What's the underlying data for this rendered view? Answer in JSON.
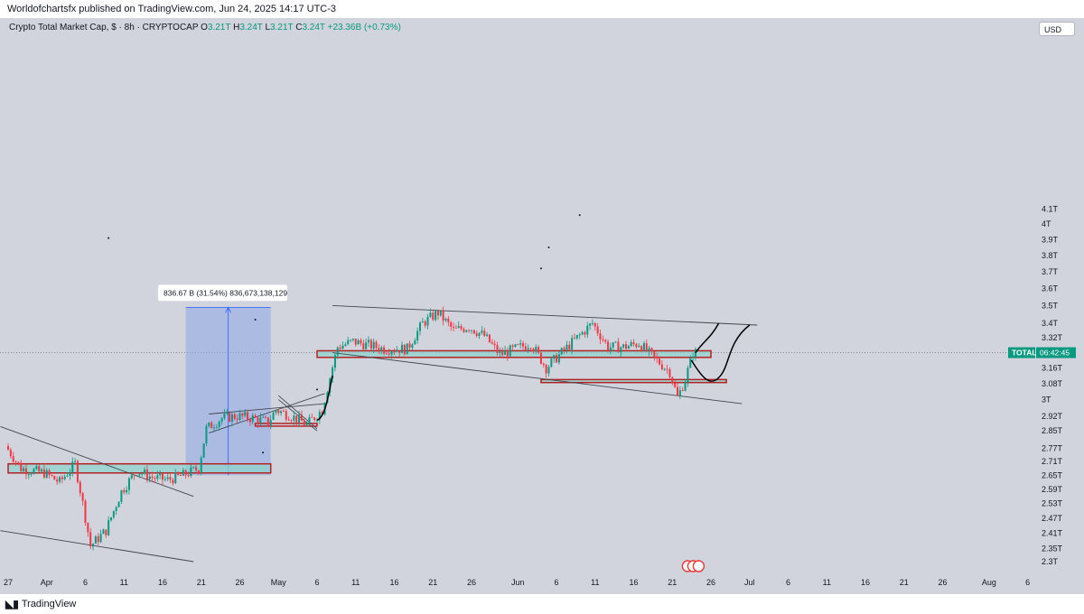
{
  "header": {
    "publish_text": "Worldofchartsfx published on TradingView.com, Jun 24, 2025 14:17 UTC-3"
  },
  "legend": {
    "title": "Crypto Total Market Cap, $ · 8h · CRYPTOCAP",
    "o_label": "O",
    "o_value": "3.21T",
    "h_label": "H",
    "h_value": "3.24T",
    "l_label": "L",
    "l_value": "3.21T",
    "c_label": "C",
    "c_value": "3.24T",
    "change": "+23.36B (+0.73%)"
  },
  "currency_button": "USD",
  "price_tag": {
    "symbol": "TOTAL",
    "countdown": "06:42:45"
  },
  "measure_label": "836.67 B (31.54%) 836,673,138,129",
  "footer": {
    "brand": "TradingView"
  },
  "colors": {
    "background": "#d1d4dc",
    "bull": "#089981",
    "bear": "#f23645",
    "zone_fill": "#8fd3cf",
    "zone_border": "#b22222",
    "measure_fill": "#8ea5e8"
  },
  "chart_data": {
    "type": "candlestick",
    "title": "Crypto Total Market Cap, $ · 8h · CRYPTOCAP",
    "price_axis": [
      "4.1T",
      "4T",
      "3.9T",
      "3.8T",
      "3.7T",
      "3.6T",
      "3.5T",
      "3.4T",
      "3.32T",
      "3.16T",
      "3.08T",
      "3T",
      "2.92T",
      "2.85T",
      "2.77T",
      "2.71T",
      "2.65T",
      "2.59T",
      "2.53T",
      "2.47T",
      "2.41T",
      "2.35T",
      "2.3T"
    ],
    "time_axis": [
      "27",
      "Apr",
      "6",
      "11",
      "16",
      "21",
      "26",
      "May",
      "6",
      "11",
      "16",
      "21",
      "26",
      "Jun",
      "6",
      "11",
      "16",
      "21",
      "26",
      "Jul",
      "6",
      "11",
      "16",
      "21",
      "26",
      "Aug",
      "6"
    ],
    "log_scale": true,
    "grid": false,
    "last_price": "3.24T",
    "series": [
      {
        "name": "TOTAL",
        "anchors": [
          [
            "Mar 27",
            2.78
          ],
          [
            "Mar 29",
            2.68
          ],
          [
            "Apr 1",
            2.66
          ],
          [
            "Apr 3",
            2.62
          ],
          [
            "Apr 5",
            2.7
          ],
          [
            "Apr 7",
            2.36
          ],
          [
            "Apr 9",
            2.42
          ],
          [
            "Apr 11",
            2.58
          ],
          [
            "Apr 13",
            2.67
          ],
          [
            "Apr 15",
            2.64
          ],
          [
            "Apr 17",
            2.63
          ],
          [
            "Apr 19",
            2.65
          ],
          [
            "Apr 21",
            2.68
          ],
          [
            "Apr 22",
            2.86
          ],
          [
            "Apr 24",
            2.91
          ],
          [
            "Apr 26",
            2.92
          ],
          [
            "Apr 28",
            2.91
          ],
          [
            "Apr 30",
            2.89
          ],
          [
            "May 1",
            2.95
          ],
          [
            "May 3",
            2.92
          ],
          [
            "May 5",
            2.88
          ],
          [
            "May 7",
            2.95
          ],
          [
            "May 9",
            3.27
          ],
          [
            "May 11",
            3.3
          ],
          [
            "May 13",
            3.28
          ],
          [
            "May 15",
            3.26
          ],
          [
            "May 18",
            3.26
          ],
          [
            "May 20",
            3.4
          ],
          [
            "May 22",
            3.46
          ],
          [
            "May 24",
            3.36
          ],
          [
            "May 26",
            3.38
          ],
          [
            "May 28",
            3.33
          ],
          [
            "May 30",
            3.23
          ],
          [
            "Jun 1",
            3.26
          ],
          [
            "Jun 3",
            3.29
          ],
          [
            "Jun 5",
            3.16
          ],
          [
            "Jun 7",
            3.24
          ],
          [
            "Jun 9",
            3.32
          ],
          [
            "Jun 11",
            3.4
          ],
          [
            "Jun 13",
            3.27
          ],
          [
            "Jun 15",
            3.27
          ],
          [
            "Jun 17",
            3.29
          ],
          [
            "Jun 19",
            3.21
          ],
          [
            "Jun 21",
            3.14
          ],
          [
            "Jun 22",
            3.01
          ],
          [
            "Jun 23",
            3.1
          ],
          [
            "Jun 24",
            3.24
          ]
        ]
      }
    ],
    "annotations": {
      "measure": {
        "from": [
          "Apr 19",
          2.65
        ],
        "to": [
          "Apr 30",
          3.49
        ],
        "label": "836.67 B (31.54%) 836,673,138,129"
      },
      "zones": [
        {
          "from": "Mar 27",
          "to": "Apr 30",
          "low": 2.66,
          "high": 2.7
        },
        {
          "from": "May 6",
          "to": "Jun 26",
          "low": 3.215,
          "high": 3.25
        },
        {
          "from": "Jun 4",
          "to": "Jun 28",
          "low": 3.085,
          "high": 3.1
        },
        {
          "from": "Apr 28",
          "to": "May 6",
          "low": 2.875,
          "high": 2.885
        }
      ],
      "trendlines": [
        {
          "from": [
            "Mar 26",
            2.87
          ],
          "to": [
            "Apr 20",
            2.56
          ]
        },
        {
          "from": [
            "Mar 26",
            2.42
          ],
          "to": [
            "Apr 20",
            2.3
          ]
        },
        {
          "from": [
            "May 8",
            3.5
          ],
          "to": [
            "Jul 2",
            3.39
          ]
        },
        {
          "from": [
            "May 8",
            3.24
          ],
          "to": [
            "Jun 30",
            2.98
          ]
        },
        {
          "from": [
            "Apr 22",
            2.84
          ],
          "to": [
            "May 7",
            3.03
          ]
        },
        {
          "from": [
            "Apr 22",
            2.93
          ],
          "to": [
            "May 7",
            2.98
          ]
        },
        {
          "from": [
            "May 1",
            3.02
          ],
          "to": [
            "May 6",
            2.86
          ]
        },
        {
          "from": [
            "May 1",
            3.0
          ],
          "to": [
            "May 6",
            2.85
          ]
        }
      ]
    }
  }
}
